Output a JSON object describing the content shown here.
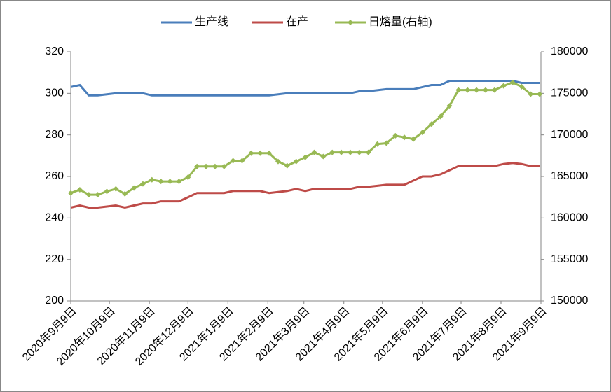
{
  "chart_data": {
    "type": "line",
    "x": [
      "2020-09-09",
      "2020-09-16",
      "2020-09-23",
      "2020-09-30",
      "2020-10-07",
      "2020-10-14",
      "2020-10-21",
      "2020-10-28",
      "2020-11-04",
      "2020-11-11",
      "2020-11-18",
      "2020-11-25",
      "2020-12-02",
      "2020-12-09",
      "2020-12-16",
      "2020-12-23",
      "2020-12-30",
      "2021-01-06",
      "2021-01-13",
      "2021-01-20",
      "2021-01-27",
      "2021-02-03",
      "2021-02-10",
      "2021-02-17",
      "2021-02-24",
      "2021-03-03",
      "2021-03-10",
      "2021-03-17",
      "2021-03-24",
      "2021-03-31",
      "2021-04-07",
      "2021-04-14",
      "2021-04-21",
      "2021-04-28",
      "2021-05-05",
      "2021-05-12",
      "2021-05-19",
      "2021-05-26",
      "2021-06-02",
      "2021-06-09",
      "2021-06-16",
      "2021-06-23",
      "2021-06-30",
      "2021-07-07",
      "2021-07-14",
      "2021-07-21",
      "2021-07-28",
      "2021-08-04",
      "2021-08-11",
      "2021-08-18",
      "2021-08-25",
      "2021-09-01",
      "2021-09-08"
    ],
    "series": [
      {
        "name": "生产线",
        "color": "#4a7ebb",
        "values": [
          303,
          304,
          299,
          299,
          299.5,
          300,
          300,
          300,
          300,
          299,
          299,
          299,
          299,
          299,
          299,
          299,
          299,
          299,
          299,
          299,
          299,
          299,
          299,
          299.5,
          300,
          300,
          300,
          300,
          300,
          300,
          300,
          300,
          301,
          301,
          301.5,
          302,
          302,
          302,
          302,
          303,
          304,
          304,
          306,
          306,
          306,
          306,
          306,
          306,
          306,
          306,
          305,
          305,
          305
        ]
      },
      {
        "name": "在产",
        "color": "#be4b48",
        "values": [
          245,
          246,
          245,
          245,
          245.5,
          246,
          245,
          246,
          247,
          247,
          248,
          248,
          248,
          250,
          252,
          252,
          252,
          252,
          253,
          253,
          253,
          253,
          252,
          252.5,
          253,
          254,
          253,
          254,
          254,
          254,
          254,
          254,
          255,
          255,
          255.5,
          256,
          256,
          256,
          258,
          260,
          260,
          261,
          263,
          265,
          265,
          265,
          265,
          265,
          266,
          266.5,
          266,
          265,
          265
        ]
      },
      {
        "name": "日熔量(右轴)",
        "color": "#98b954",
        "axis": "y2",
        "marker": "diamond",
        "values": [
          163000,
          163400,
          162800,
          162800,
          163200,
          163500,
          162900,
          163600,
          164100,
          164600,
          164400,
          164400,
          164400,
          164900,
          166200,
          166200,
          166200,
          166200,
          166900,
          166900,
          167800,
          167800,
          167800,
          166800,
          166300,
          166800,
          167300,
          167900,
          167400,
          167900,
          167900,
          167900,
          167900,
          167900,
          168900,
          169000,
          169900,
          169700,
          169500,
          170300,
          171300,
          172200,
          173500,
          175400,
          175400,
          175400,
          175400,
          175400,
          175900,
          176300,
          175800,
          174900,
          174900
        ]
      }
    ],
    "ylim": [
      200,
      320
    ],
    "yticks": [
      200,
      220,
      240,
      260,
      280,
      300,
      320
    ],
    "y2lim": [
      150000,
      180000
    ],
    "y2ticks": [
      150000,
      155000,
      160000,
      165000,
      170000,
      175000,
      180000
    ],
    "xlim": [
      "2020-09-09",
      "2021-09-09"
    ],
    "xticks": [
      {
        "value": "2020-09-09",
        "label": "2020年9月9日"
      },
      {
        "value": "2020-10-09",
        "label": "2020年10月9日"
      },
      {
        "value": "2020-11-09",
        "label": "2020年11月9日"
      },
      {
        "value": "2020-12-09",
        "label": "2020年12月9日"
      },
      {
        "value": "2021-01-09",
        "label": "2021年1月9日"
      },
      {
        "value": "2021-02-09",
        "label": "2021年2月9日"
      },
      {
        "value": "2021-03-09",
        "label": "2021年3月9日"
      },
      {
        "value": "2021-04-09",
        "label": "2021年4月9日"
      },
      {
        "value": "2021-05-09",
        "label": "2021年5月9日"
      },
      {
        "value": "2021-06-09",
        "label": "2021年6月9日"
      },
      {
        "value": "2021-07-09",
        "label": "2021年7月9日"
      },
      {
        "value": "2021-08-09",
        "label": "2021年8月9日"
      },
      {
        "value": "2021-09-09",
        "label": "2021年9月9日"
      }
    ],
    "legend": "top"
  }
}
